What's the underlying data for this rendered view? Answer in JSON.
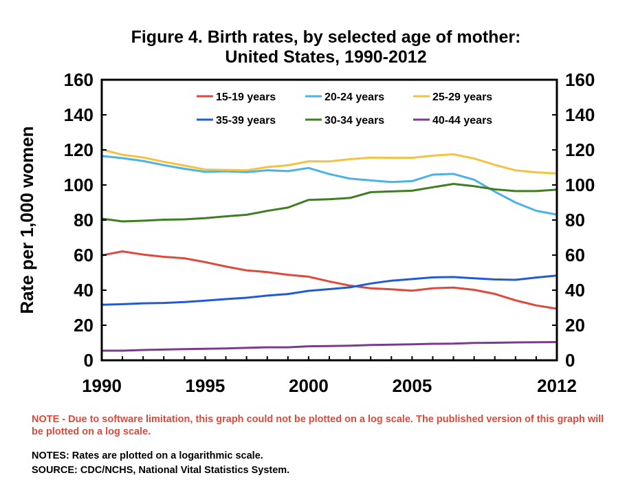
{
  "figure": {
    "title_line1": "Figure 4.  Birth rates, by selected age of mother:",
    "title_line2": "United States, 1990-2012",
    "note_red": "NOTE - Due to software limitation, this graph could not be plotted on a log scale.  The published version of this graph will be plotted on a log scale.",
    "notes": "NOTES:  Rates are plotted on a logarithmic scale.",
    "source": "SOURCE: CDC/NCHS, National Vital Statistics System."
  },
  "chart_data": {
    "type": "line",
    "title": "Figure 4.  Birth rates, by selected age of mother: United States, 1990-2012",
    "xlabel": "",
    "ylabel": "Rate per 1,000 women",
    "x": [
      1990,
      1991,
      1992,
      1993,
      1994,
      1995,
      1996,
      1997,
      1998,
      1999,
      2000,
      2001,
      2002,
      2003,
      2004,
      2005,
      2006,
      2007,
      2008,
      2009,
      2010,
      2011,
      2012
    ],
    "xlim": [
      1990,
      2012
    ],
    "ylim": [
      0,
      160
    ],
    "x_ticks": [
      1990,
      1995,
      2000,
      2005,
      2012
    ],
    "x_tick_labels": [
      "1990",
      "1995",
      "2000",
      "2005",
      "2012"
    ],
    "y_ticks": [
      0,
      20,
      40,
      60,
      80,
      100,
      120,
      140,
      160
    ],
    "y_tick_labels": [
      "0",
      "20",
      "40",
      "60",
      "80",
      "100",
      "120",
      "140",
      "160"
    ],
    "secondary_y_axis": true,
    "grid": false,
    "legend_position": "top-inside",
    "series": [
      {
        "name": "15-19 years",
        "color": "#e0483a",
        "values": [
          59.9,
          62.1,
          60.3,
          59.0,
          58.2,
          56.0,
          53.5,
          51.3,
          50.3,
          48.8,
          47.7,
          45.0,
          42.6,
          41.1,
          40.5,
          39.7,
          41.1,
          41.5,
          40.2,
          37.9,
          34.2,
          31.3,
          29.4
        ]
      },
      {
        "name": "20-24 years",
        "color": "#4bb3e4",
        "values": [
          116.5,
          115.3,
          113.7,
          111.3,
          109.2,
          107.5,
          107.8,
          107.3,
          108.4,
          107.9,
          109.7,
          106.2,
          103.6,
          102.6,
          101.7,
          102.2,
          105.9,
          106.3,
          103.0,
          96.2,
          90.0,
          85.3,
          83.1
        ]
      },
      {
        "name": "25-29 years",
        "color": "#f4c242",
        "values": [
          120.2,
          117.2,
          115.7,
          113.2,
          111.0,
          108.8,
          108.6,
          108.3,
          110.2,
          111.2,
          113.5,
          113.4,
          114.7,
          115.6,
          115.5,
          115.5,
          116.7,
          117.5,
          115.1,
          111.5,
          108.3,
          107.2,
          106.5
        ]
      },
      {
        "name": "35-39 years",
        "color": "#1f5bd6",
        "values": [
          31.7,
          32.0,
          32.5,
          32.7,
          33.2,
          34.0,
          34.9,
          35.7,
          36.9,
          37.8,
          39.6,
          40.6,
          41.6,
          43.8,
          45.4,
          46.3,
          47.3,
          47.5,
          46.8,
          46.1,
          45.9,
          47.2,
          48.3
        ]
      },
      {
        "name": "30-34 years",
        "color": "#3e7d21",
        "values": [
          80.8,
          79.2,
          79.6,
          80.2,
          80.4,
          81.1,
          82.1,
          83.0,
          85.2,
          87.1,
          91.5,
          91.9,
          92.6,
          95.9,
          96.3,
          96.7,
          98.7,
          100.6,
          99.3,
          97.5,
          96.5,
          96.5,
          97.3
        ]
      },
      {
        "name": "40-44 years",
        "color": "#7a3b8e",
        "values": [
          5.5,
          5.5,
          5.9,
          6.1,
          6.4,
          6.6,
          6.8,
          7.1,
          7.4,
          7.4,
          8.0,
          8.1,
          8.3,
          8.7,
          8.9,
          9.1,
          9.4,
          9.5,
          9.9,
          10.0,
          10.2,
          10.3,
          10.4
        ]
      }
    ]
  }
}
